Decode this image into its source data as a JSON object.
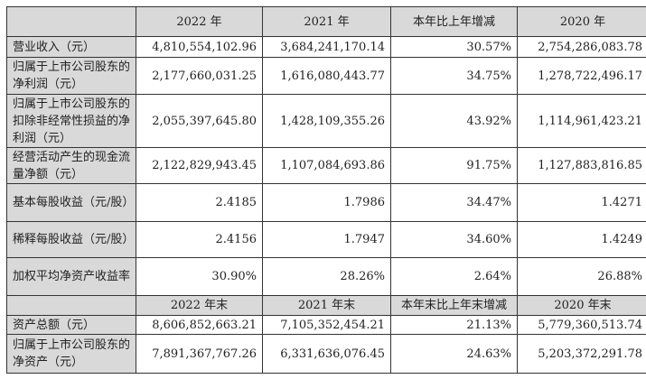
{
  "header1": [
    "",
    "2022 年",
    "2021 年",
    "本年比上年增减",
    "2020 年"
  ],
  "rows1": [
    {
      "label": "营业收入（元）",
      "values": [
        "4,810,554,102.96",
        "3,684,241,170.14",
        "30.57%",
        "2,754,286,083.78"
      ]
    },
    {
      "label": "归属于上市公司股东的净利润（元）",
      "values": [
        "2,177,660,031.25",
        "1,616,080,443.77",
        "34.75%",
        "1,278,722,496.17"
      ]
    },
    {
      "label": "归属于上市公司股东的扣除非经常性损益的净利润（元）",
      "values": [
        "2,055,397,645.80",
        "1,428,109,355.26",
        "43.92%",
        "1,114,961,423.21"
      ]
    },
    {
      "label": "经营活动产生的现金流量净额（元）",
      "values": [
        "2,122,829,943.45",
        "1,107,084,693.86",
        "91.75%",
        "1,127,883,816.85"
      ]
    },
    {
      "label": "基本每股收益（元/股）",
      "values": [
        "2.4185",
        "1.7986",
        "34.47%",
        "1.4271"
      ]
    },
    {
      "label": "稀释每股收益（元/股）",
      "values": [
        "2.4156",
        "1.7947",
        "34.60%",
        "1.4249"
      ]
    },
    {
      "label": "加权平均净资产收益率",
      "values": [
        "30.90%",
        "28.26%",
        "2.64%",
        "26.88%"
      ]
    }
  ],
  "header2": [
    "",
    "2022 年末",
    "2021 年末",
    "本年末比上年末增减",
    "2020 年末"
  ],
  "rows2": [
    {
      "label": "资产总额（元）",
      "values": [
        "8,606,852,663.21",
        "7,105,352,454.21",
        "21.13%",
        "5,779,360,513.74"
      ]
    },
    {
      "label": "归属于上市公司股东的净资产（元）",
      "values": [
        "7,891,367,767.26",
        "6,331,636,076.45",
        "24.63%",
        "5,203,372,291.78"
      ]
    }
  ]
}
